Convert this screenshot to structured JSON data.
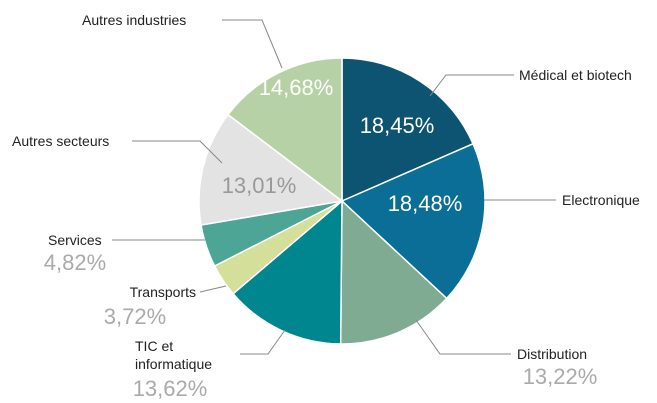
{
  "chart_data": {
    "type": "pie",
    "categories": [
      "Médical et biotech",
      "Electronique",
      "Distribution",
      "TIC et informatique",
      "Transports",
      "Services",
      "Autres secteurs",
      "Autres industries"
    ],
    "values": [
      18.45,
      18.48,
      13.22,
      13.62,
      3.72,
      4.82,
      13.01,
      14.68
    ],
    "value_labels": [
      "18,45%",
      "18,48%",
      "13,22%",
      "13,62%",
      "3,72%",
      "4,82%",
      "13,01%",
      "14,68%"
    ],
    "colors": [
      "#0d5473",
      "#0a6e96",
      "#7eab92",
      "#00868f",
      "#d4df9a",
      "#4da595",
      "#e3e3e3",
      "#b6d1a5"
    ]
  }
}
